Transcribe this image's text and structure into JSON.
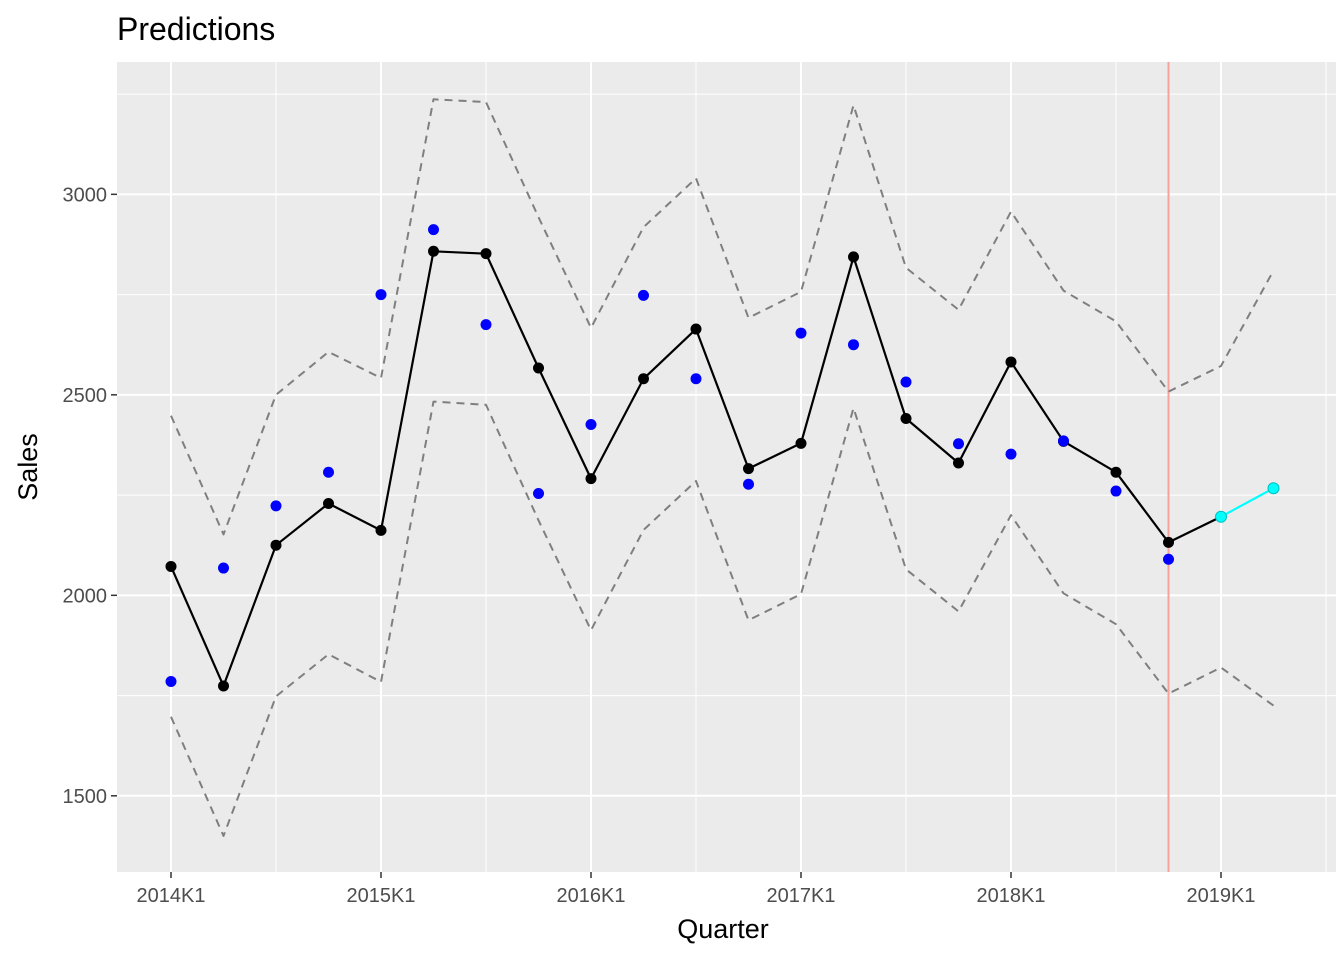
{
  "chart_data": {
    "type": "line",
    "title": "Predictions",
    "xlabel": "Quarter",
    "ylabel": "Sales",
    "x_tick_labels": [
      "2014K1",
      "2015K1",
      "2016K1",
      "2017K1",
      "2018K1",
      "2019K1"
    ],
    "y_tick_labels": [
      "1500",
      "2000",
      "2500",
      "3000"
    ],
    "y_ticks": [
      1500,
      2000,
      2500,
      3000
    ],
    "ylim": [
      1310,
      3330
    ],
    "x_quarters": [
      "2014K1",
      "2014K2",
      "2014K3",
      "2014K4",
      "2015K1",
      "2015K2",
      "2015K3",
      "2015K4",
      "2016K1",
      "2016K2",
      "2016K3",
      "2016K4",
      "2017K1",
      "2017K2",
      "2017K3",
      "2017K4",
      "2018K1",
      "2018K2",
      "2018K3",
      "2018K4",
      "2019K1",
      "2019K2"
    ],
    "xlim": [
      "2013K4",
      "2019K3"
    ],
    "grid": true,
    "background": "#EBEBEB",
    "series": [
      {
        "style": "points",
        "color": "#0000FF",
        "x": [
          "2014K1",
          "2014K2",
          "2014K3",
          "2014K4",
          "2015K1",
          "2015K2",
          "2015K3",
          "2015K4",
          "2016K1",
          "2016K2",
          "2016K3",
          "2016K4",
          "2017K1",
          "2017K2",
          "2017K3",
          "2017K4",
          "2018K1",
          "2018K2",
          "2018K3",
          "2018K4"
        ],
        "values": [
          1785,
          2068,
          2223,
          2307,
          2750,
          2912,
          2675,
          2254,
          2426,
          2748,
          2540,
          2277,
          2654,
          2625,
          2532,
          2378,
          2352,
          2385,
          2260,
          2090
        ]
      },
      {
        "style": "line+points",
        "color": "#000000",
        "x": [
          "2014K1",
          "2014K2",
          "2014K3",
          "2014K4",
          "2015K1",
          "2015K2",
          "2015K3",
          "2015K4",
          "2016K1",
          "2016K2",
          "2016K3",
          "2016K4",
          "2017K1",
          "2017K2",
          "2017K3",
          "2017K4",
          "2018K1",
          "2018K2",
          "2018K3",
          "2018K4",
          "2019K1"
        ],
        "values": [
          2072,
          1774,
          2125,
          2229,
          2162,
          2858,
          2852,
          2567,
          2291,
          2540,
          2664,
          2316,
          2379,
          2844,
          2441,
          2330,
          2582,
          2384,
          2307,
          2132,
          2196
        ]
      },
      {
        "style": "line+points",
        "color": "#00FFFF",
        "x": [
          "2019K1",
          "2019K2"
        ],
        "values": [
          2196,
          2267
        ]
      },
      {
        "style": "dashed",
        "color": "#7F7F7F",
        "x": [
          "2014K1",
          "2014K2",
          "2014K3",
          "2014K4",
          "2015K1",
          "2015K2",
          "2015K3",
          "2015K4",
          "2016K1",
          "2016K2",
          "2016K3",
          "2016K4",
          "2017K1",
          "2017K2",
          "2017K3",
          "2017K4",
          "2018K1",
          "2018K2",
          "2018K3",
          "2018K4",
          "2019K1",
          "2019K2"
        ],
        "values": [
          2448,
          2152,
          2500,
          2607,
          2542,
          3237,
          3230,
          2943,
          2667,
          2918,
          3040,
          2692,
          2757,
          3222,
          2817,
          2712,
          2957,
          2760,
          2683,
          2508,
          2572,
          2810
        ]
      },
      {
        "style": "dashed",
        "color": "#7F7F7F",
        "x": [
          "2014K1",
          "2014K2",
          "2014K3",
          "2014K4",
          "2015K1",
          "2015K2",
          "2015K3",
          "2015K4",
          "2016K1",
          "2016K2",
          "2016K3",
          "2016K4",
          "2017K1",
          "2017K2",
          "2017K3",
          "2017K4",
          "2018K1",
          "2018K2",
          "2018K3",
          "2018K4",
          "2019K1",
          "2019K2"
        ],
        "values": [
          1697,
          1400,
          1748,
          1853,
          1784,
          2483,
          2475,
          2187,
          1913,
          2163,
          2285,
          1938,
          2003,
          2467,
          2065,
          1960,
          2200,
          2005,
          1928,
          1755,
          1820,
          1725
        ]
      }
    ],
    "vline": {
      "x": "2018K4",
      "color": "#F8A09A"
    }
  }
}
